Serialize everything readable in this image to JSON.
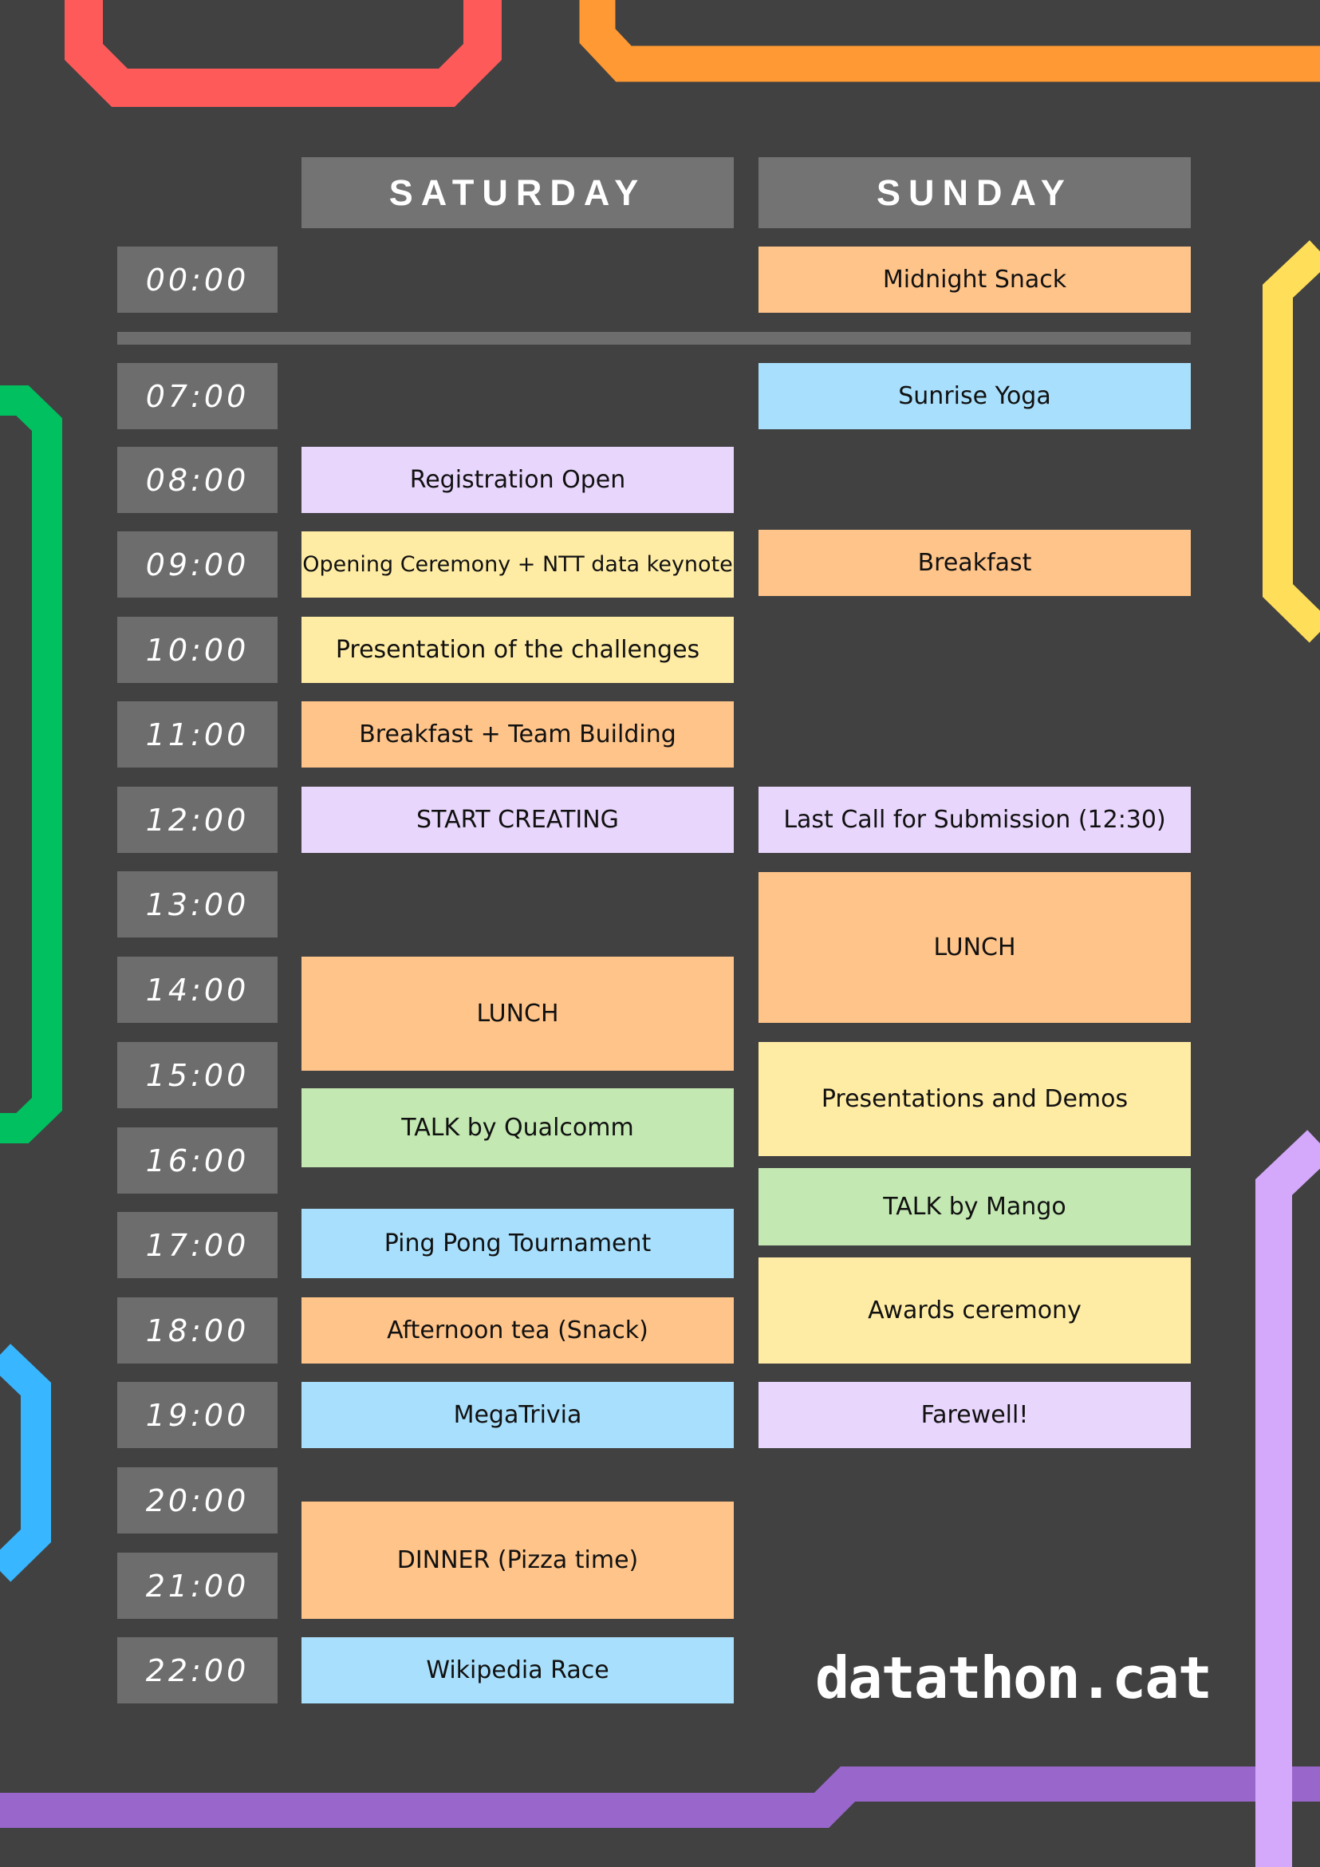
{
  "days": [
    "SATURDAY",
    "SUNDAY"
  ],
  "times": [
    "00:00",
    "07:00",
    "08:00",
    "09:00",
    "10:00",
    "11:00",
    "12:00",
    "13:00",
    "14:00",
    "15:00",
    "16:00",
    "17:00",
    "18:00",
    "19:00",
    "20:00",
    "21:00",
    "22:00"
  ],
  "saturday": [
    {
      "label": "Registration Open",
      "category": "lavender"
    },
    {
      "label": "Opening Ceremony + NTT data keynote",
      "category": "yellow"
    },
    {
      "label": "Presentation of the challenges",
      "category": "yellow"
    },
    {
      "label": "Breakfast + Team Building",
      "category": "orange"
    },
    {
      "label": "START CREATING",
      "category": "lavender"
    },
    {
      "label": "LUNCH",
      "category": "orange"
    },
    {
      "label": "TALK by Qualcomm",
      "category": "green"
    },
    {
      "label": "Ping Pong Tournament",
      "category": "blue"
    },
    {
      "label": "Afternoon tea (Snack)",
      "category": "orange"
    },
    {
      "label": "MegaTrivia",
      "category": "blue"
    },
    {
      "label": "DINNER (Pizza time)",
      "category": "orange"
    },
    {
      "label": "Wikipedia Race",
      "category": "blue"
    }
  ],
  "sunday": [
    {
      "label": "Midnight Snack",
      "category": "orange"
    },
    {
      "label": "Sunrise Yoga",
      "category": "blue"
    },
    {
      "label": "Breakfast",
      "category": "orange"
    },
    {
      "label": "Last Call for Submission (12:30)",
      "category": "lavender"
    },
    {
      "label": "LUNCH",
      "category": "orange"
    },
    {
      "label": "Presentations and Demos",
      "category": "yellow"
    },
    {
      "label": "TALK by Mango",
      "category": "green"
    },
    {
      "label": "Awards ceremony",
      "category": "yellow"
    },
    {
      "label": "Farewell!",
      "category": "lavender"
    }
  ],
  "colors": {
    "background": "#414141",
    "orange": "#ffc489",
    "yellow": "#ffeca4",
    "lavender": "#e8d6fc",
    "blue": "#a8dffc",
    "green": "#c3e8b2",
    "accent_red": "#ff5a5a",
    "accent_orange": "#ff9933",
    "accent_yellow": "#ffde59",
    "accent_green": "#00c060",
    "accent_blue": "#38b6ff",
    "accent_purple": "#9966cc",
    "accent_lilac": "#d4a8fb"
  },
  "logo": "datathon.cat"
}
